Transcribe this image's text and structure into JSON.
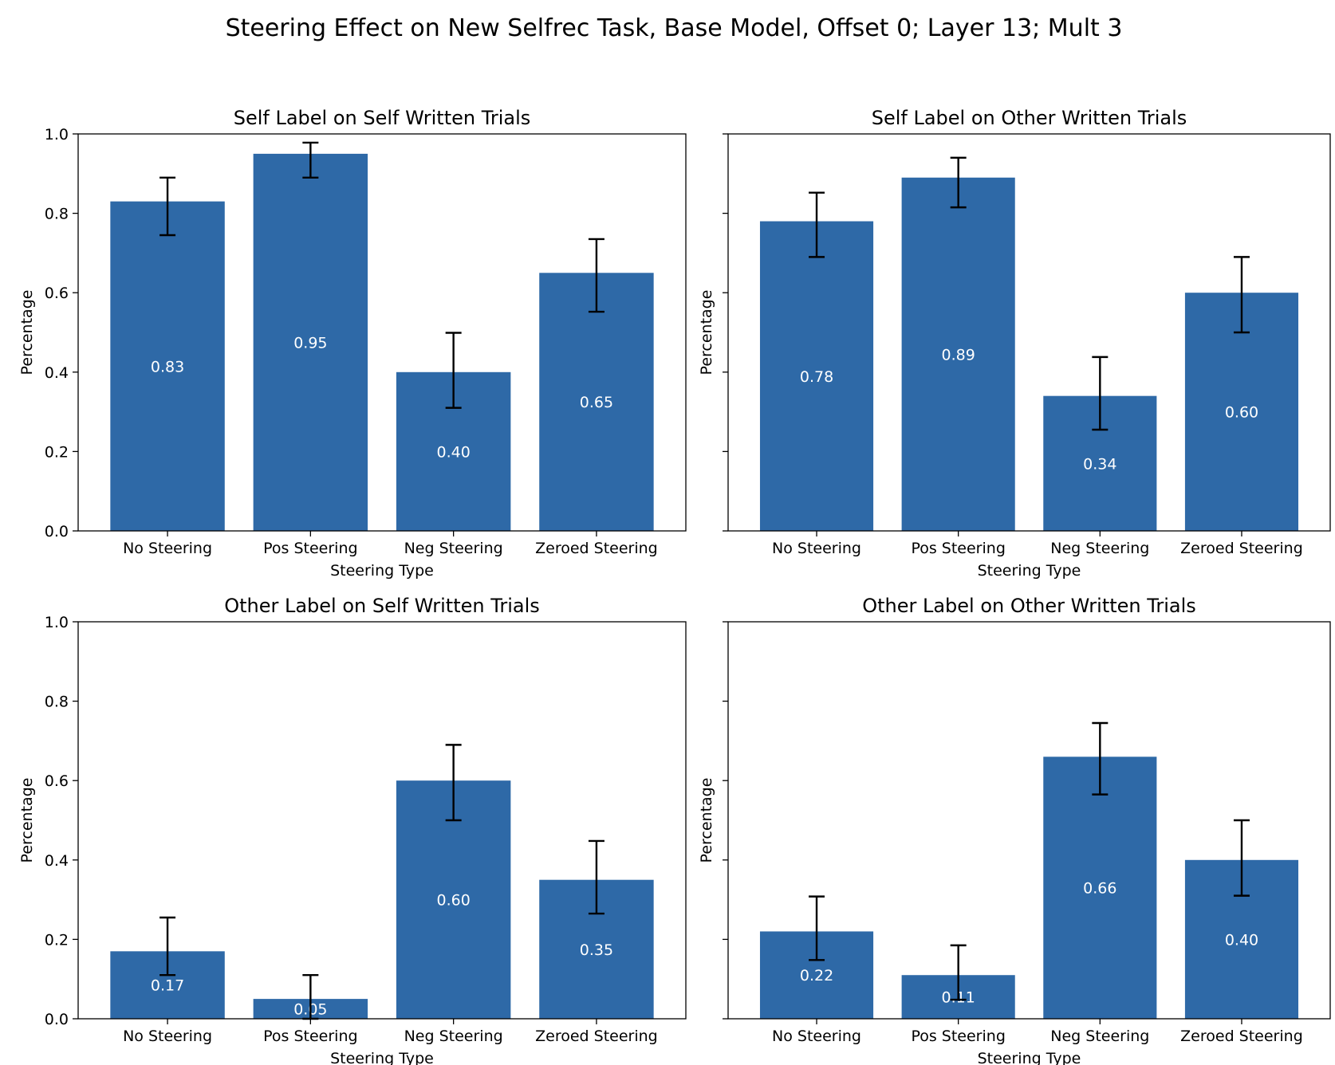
{
  "title": "Steering Effect on New Selfrec Task, Base Model, Offset 0; Layer 13; Mult 3",
  "colors": {
    "bar": "#2e69a7",
    "bar_label": "#ffffff",
    "axis": "#000000"
  },
  "chart_data": [
    {
      "type": "bar",
      "title": "Self Label on Self Written Trials",
      "xlabel": "Steering Type",
      "ylabel": "Percentage",
      "categories": [
        "No Steering",
        "Pos Steering",
        "Neg Steering",
        "Zeroed Steering"
      ],
      "values": [
        0.83,
        0.95,
        0.4,
        0.65
      ],
      "value_labels": [
        "0.83",
        "0.95",
        "0.40",
        "0.65"
      ],
      "error_low": [
        0.745,
        0.89,
        0.31,
        0.552
      ],
      "error_high": [
        0.89,
        0.978,
        0.499,
        0.735
      ],
      "ylim": [
        0,
        1.0
      ],
      "yticks": [
        "0.0",
        "0.2",
        "0.4",
        "0.6",
        "0.8",
        "1.0"
      ],
      "show_ytick_labels": true,
      "grid": false
    },
    {
      "type": "bar",
      "title": "Self Label on Other Written Trials",
      "xlabel": "Steering Type",
      "ylabel": "Percentage",
      "categories": [
        "No Steering",
        "Pos Steering",
        "Neg Steering",
        "Zeroed Steering"
      ],
      "values": [
        0.78,
        0.89,
        0.34,
        0.6
      ],
      "value_labels": [
        "0.78",
        "0.89",
        "0.34",
        "0.60"
      ],
      "error_low": [
        0.69,
        0.815,
        0.255,
        0.5
      ],
      "error_high": [
        0.852,
        0.94,
        0.438,
        0.69
      ],
      "ylim": [
        0,
        1.0
      ],
      "yticks": [
        "0.0",
        "0.2",
        "0.4",
        "0.6",
        "0.8",
        "1.0"
      ],
      "show_ytick_labels": false,
      "grid": false
    },
    {
      "type": "bar",
      "title": "Other Label on Self Written Trials",
      "xlabel": "Steering Type",
      "ylabel": "Percentage",
      "categories": [
        "No Steering",
        "Pos Steering",
        "Neg Steering",
        "Zeroed Steering"
      ],
      "values": [
        0.17,
        0.05,
        0.6,
        0.35
      ],
      "value_labels": [
        "0.17",
        "0.05",
        "0.60",
        "0.35"
      ],
      "error_low": [
        0.11,
        0.0,
        0.5,
        0.265
      ],
      "error_high": [
        0.255,
        0.11,
        0.69,
        0.448
      ],
      "ylim": [
        0,
        1.0
      ],
      "yticks": [
        "0.0",
        "0.2",
        "0.4",
        "0.6",
        "0.8",
        "1.0"
      ],
      "show_ytick_labels": true,
      "grid": false
    },
    {
      "type": "bar",
      "title": "Other Label on Other Written Trials",
      "xlabel": "Steering Type",
      "ylabel": "Percentage",
      "categories": [
        "No Steering",
        "Pos Steering",
        "Neg Steering",
        "Zeroed Steering"
      ],
      "values": [
        0.22,
        0.11,
        0.66,
        0.4
      ],
      "value_labels": [
        "0.22",
        "0.11",
        "0.66",
        "0.40"
      ],
      "error_low": [
        0.148,
        0.048,
        0.565,
        0.31
      ],
      "error_high": [
        0.308,
        0.185,
        0.745,
        0.5
      ],
      "ylim": [
        0,
        1.0
      ],
      "yticks": [
        "0.0",
        "0.2",
        "0.4",
        "0.6",
        "0.8",
        "1.0"
      ],
      "show_ytick_labels": false,
      "grid": false
    }
  ]
}
